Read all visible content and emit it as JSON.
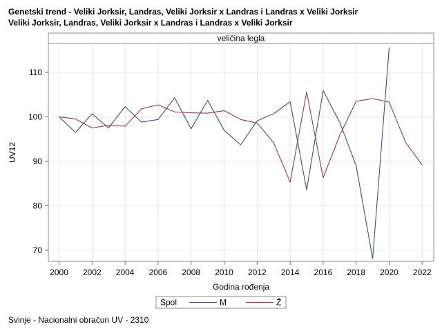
{
  "titles": {
    "line1": "Genetski trend - Veliki Jorksir, Landras, Veliki Jorksir x Landras i Landras x Veliki Jorksir",
    "line2": "Veliki Jorksir, Landras, Veliki Jorksir x Landras i Landras x Veliki Jorksir"
  },
  "footnote": "Svinje - Nacionalni obračun UV - 2310",
  "chart_data": {
    "type": "line",
    "panel_title": "veličina legla",
    "xlabel": "Godina rođenja",
    "ylabel": "UV12",
    "xlim": [
      1999.35,
      2022.7
    ],
    "ylim": [
      67.5,
      116.5
    ],
    "x_ticks": [
      2000,
      2002,
      2004,
      2006,
      2008,
      2010,
      2012,
      2014,
      2016,
      2018,
      2020,
      2022
    ],
    "y_ticks": [
      70,
      80,
      90,
      100,
      110
    ],
    "grid": true,
    "legend": {
      "title": "Spol",
      "placement": "bottom"
    },
    "series": [
      {
        "name": "M",
        "color": "#3b4a86",
        "x": [
          2000,
          2001,
          2002,
          2003,
          2004,
          2005,
          2006,
          2007,
          2008,
          2009,
          2010,
          2011,
          2012,
          2013,
          2014,
          2015,
          2016,
          2017,
          2018,
          2019,
          2020
        ],
        "values": [
          100.0,
          96.5,
          100.7,
          97.5,
          102.3,
          98.8,
          99.4,
          104.3,
          97.3,
          103.7,
          97.0,
          93.7,
          99.1,
          100.7,
          103.4,
          83.6,
          105.9,
          98.8,
          89.0,
          68.1,
          115.6
        ]
      },
      {
        "name": "Ž",
        "color": "#a0362f",
        "x": [
          2000,
          2001,
          2002,
          2003,
          2004,
          2005,
          2006,
          2007,
          2008,
          2009,
          2010,
          2011,
          2012,
          2013,
          2014,
          2015,
          2016,
          2017,
          2018,
          2019,
          2020,
          2021,
          2022
        ],
        "values": [
          100.0,
          99.5,
          97.5,
          98.1,
          97.9,
          101.8,
          102.7,
          101.1,
          100.9,
          100.8,
          101.4,
          99.4,
          98.6,
          94.2,
          85.3,
          105.6,
          86.3,
          95.8,
          103.5,
          104.1,
          103.3,
          94.2,
          89.2
        ]
      }
    ]
  }
}
